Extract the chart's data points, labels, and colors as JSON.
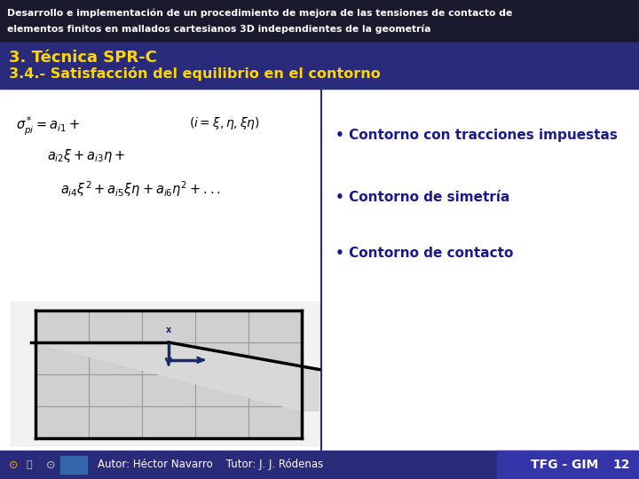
{
  "bg_color": "#ffffff",
  "header_bg": "#1a1a2e",
  "header_text_color": "#ffffff",
  "header_line1": "Desarrollo e implementación de un procedimiento de mejora de las tensiones de contacto de",
  "header_line2": "elementos finitos en mallados cartesianos 3D independientes de la geometría",
  "title_bg": "#2a2a7a",
  "title_line1": "3. Técnica SPR-C",
  "title_line2": "3.4.- Satisfacción del equilibrio en el contorno",
  "title_color": "#FFD700",
  "divider_color": "#2a2a7a",
  "bullet_color": "#1a1a8e",
  "bullet1": "Contorno con tracciones impuestas",
  "bullet2": "Contorno de simetría",
  "bullet3": "Contorno de contacto",
  "bullet_fontsize": 11,
  "formula_color": "#000000",
  "footer_bg": "#2a2a7a",
  "footer_right_bg": "#3535aa",
  "footer_text_color": "#ffffff",
  "footer_author": "Autor: Héctor Navarro",
  "footer_tutor": "Tutor: J. J. Ródenas",
  "footer_right": "TFG - GIM",
  "footer_page": "12",
  "grid_color": "#999999",
  "mesh_fill": "#d0d0d0",
  "arrow_color": "#1a2a6e",
  "curve_color": "#000000",
  "marble_bg": "#e8e8e8"
}
